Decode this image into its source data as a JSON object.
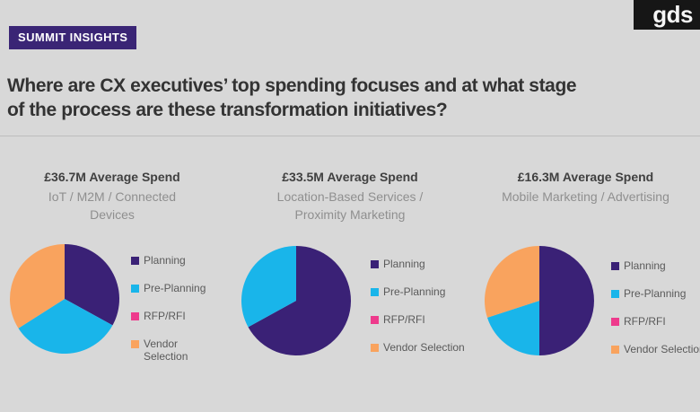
{
  "brand": {
    "logo_text": "gds",
    "logo_bg": "#161616",
    "badge_text": "SUMMIT INSIGHTS",
    "badge_bg": "#3a2575"
  },
  "headline": {
    "lines": [
      "Where are CX executives’ top spending focuses and at what stage",
      "of the process are these transformation initiatives?"
    ]
  },
  "colors": {
    "planning": "#3a2176",
    "pre_planning": "#19b5ea",
    "rfp_rfi": "#ee3a8c",
    "vendor_selection": "#f9a35e",
    "background": "#d8d8d8"
  },
  "chart_data": [
    {
      "type": "pie",
      "title": "£36.7M Average Spend",
      "subtitle": "IoT / M2M / Connected Devices",
      "subtitle_lines": [
        "IoT / M2M / Connected",
        "Devices"
      ],
      "labels": [
        "Planning",
        "Pre-Planning",
        "RFP/RFI",
        "Vendor Selection"
      ],
      "values_pct": [
        33,
        33,
        0,
        34
      ],
      "slice_colors": [
        "#3a2176",
        "#19b5ea",
        "#ee3a8c",
        "#f9a35e"
      ],
      "legend_position": "right"
    },
    {
      "type": "pie",
      "title": "£33.5M Average Spend",
      "subtitle": "Location-Based Services / Proximity Marketing",
      "subtitle_lines": [
        "Location-Based Services /",
        "Proximity Marketing"
      ],
      "labels": [
        "Planning",
        "Pre-Planning",
        "RFP/RFI",
        "Vendor Selection"
      ],
      "values_pct": [
        67,
        33,
        0,
        0
      ],
      "slice_colors": [
        "#3a2176",
        "#19b5ea",
        "#ee3a8c",
        "#f9a35e"
      ],
      "legend_position": "right"
    },
    {
      "type": "pie",
      "title": "£16.3M Average Spend",
      "subtitle": "Mobile Marketing / Advertising",
      "subtitle_lines": [
        "Mobile Marketing / Advertising"
      ],
      "labels": [
        "Planning",
        "Pre-Planning",
        "RFP/RFI",
        "Vendor Selection"
      ],
      "values_pct": [
        50,
        20,
        0,
        30
      ],
      "slice_colors": [
        "#3a2176",
        "#19b5ea",
        "#ee3a8c",
        "#f9a35e"
      ],
      "legend_position": "right"
    }
  ]
}
